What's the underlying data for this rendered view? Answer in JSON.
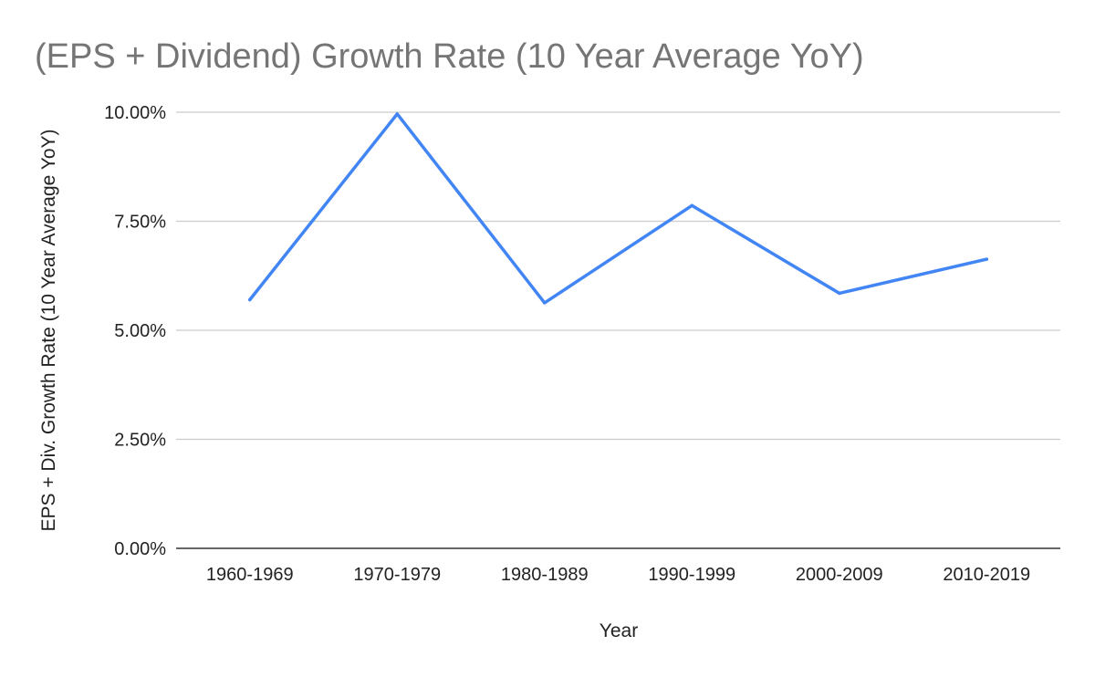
{
  "chart_data": {
    "type": "line",
    "title": "(EPS + Dividend) Growth Rate (10 Year Average YoY)",
    "xlabel": "Year",
    "ylabel": "EPS + Div. Growth Rate (10 Year Average YoY)",
    "categories": [
      "1960-1969",
      "1970-1979",
      "1980-1989",
      "1990-1999",
      "2000-2009",
      "2010-2019"
    ],
    "series": [
      {
        "values": [
          5.7,
          9.96,
          5.63,
          7.86,
          5.85,
          6.63
        ],
        "color": "#4285f4"
      }
    ],
    "ylim": [
      0,
      10
    ],
    "yticks": [
      0,
      2.5,
      5,
      7.5,
      10
    ],
    "ytick_labels": [
      "0.00%",
      "2.50%",
      "5.00%",
      "7.50%",
      "10.00%"
    ],
    "grid": true,
    "legend": "none"
  }
}
